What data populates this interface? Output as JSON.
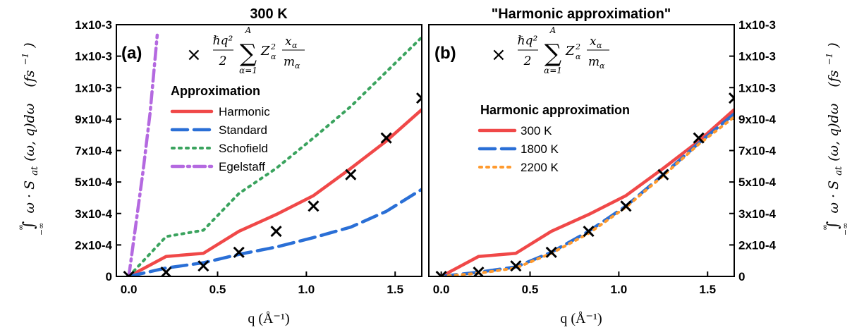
{
  "colors": {
    "harmonic": "#f04848",
    "standard": "#2a6fd6",
    "schofield": "#3aa35e",
    "egelstaff": "#b469e0",
    "k1800": "#2a6fd6",
    "k2200": "#ff9a2e",
    "marker": "#000000"
  },
  "formula": {
    "hbar_q2": "ℏq²",
    "two": "2",
    "sum": "∑",
    "sum_top": "A",
    "sum_bottom": "α=1",
    "z_term": "Z",
    "z_sub": "α",
    "z_sup": "2",
    "x_num": "x",
    "x_sub": "α",
    "m_den": "m",
    "m_sub": "α",
    "marker_symbol": "×"
  },
  "y_axis_label": {
    "int_upper": "∞",
    "int_lower": "−∞",
    "integral": "∫",
    "body": "ω · S",
    "sub": "at",
    "rest": "(ω, q)dω",
    "units": "(fs",
    "units_sup": "−1",
    "units_close": ")"
  },
  "chart_data": [
    {
      "type": "line",
      "panel_label": "(a)",
      "title": "300 K",
      "xlabel": "q (Å⁻¹)",
      "xlim": [
        -0.07,
        1.65
      ],
      "ylim": [
        0,
        0.0012
      ],
      "x_ticks": [
        "0.0",
        "0.5",
        "1.0",
        "1.5"
      ],
      "x_tick_values": [
        0,
        0.5,
        1.0,
        1.5
      ],
      "y_ticks": [
        "0",
        "2x10-4",
        "3x10-4",
        "5x10-4",
        "7x10-4",
        "9x10-4",
        "1x10-3",
        "1x10-3",
        "1x10-3"
      ],
      "y_tick_values": [
        0,
        0.00015,
        0.0003,
        0.00045,
        0.0006,
        0.00075,
        0.0009,
        0.00105,
        0.0012
      ],
      "legend_title": "Approximation",
      "legend_position": "top-center",
      "series": [
        {
          "name": "Harmonic",
          "style": "solid",
          "color_key": "harmonic",
          "x": [
            0,
            0.21,
            0.42,
            0.62,
            0.83,
            1.04,
            1.25,
            1.45,
            1.65
          ],
          "y": [
            0.0,
            9.5e-05,
            0.00011,
            0.000215,
            0.000295,
            0.000385,
            0.000515,
            0.000645,
            0.000795
          ]
        },
        {
          "name": "Standard",
          "style": "dash",
          "color_key": "standard",
          "x": [
            0,
            0.21,
            0.42,
            0.62,
            0.83,
            1.04,
            1.25,
            1.45,
            1.65
          ],
          "y": [
            0.0,
            4e-05,
            6.5e-05,
            0.000105,
            0.00014,
            0.000185,
            0.000235,
            0.00031,
            0.000415
          ]
        },
        {
          "name": "Schofield",
          "style": "dot",
          "color_key": "schofield",
          "x": [
            0,
            0.21,
            0.42,
            0.62,
            0.83,
            1.04,
            1.25,
            1.45,
            1.65
          ],
          "y": [
            0.0,
            0.00019,
            0.00022,
            0.000395,
            0.000515,
            0.00066,
            0.00081,
            0.000975,
            0.00114
          ]
        },
        {
          "name": "Egelstaff",
          "style": "dashdot",
          "color_key": "egelstaff",
          "x": [
            0,
            0.04,
            0.08,
            0.12,
            0.16
          ],
          "y": [
            0.0,
            0.00025,
            0.0005,
            0.00078,
            0.00115
          ]
        },
        {
          "name": "",
          "style": "marker",
          "color_key": "marker",
          "x": [
            0,
            0.21,
            0.42,
            0.62,
            0.83,
            1.04,
            1.25,
            1.45,
            1.65
          ],
          "y": [
            0.0,
            2e-05,
            5e-05,
            0.000115,
            0.000215,
            0.000335,
            0.000485,
            0.00066,
            0.00085
          ]
        }
      ]
    },
    {
      "type": "line",
      "panel_label": "(b)",
      "title": "\"Harmonic approximation\"",
      "xlabel": "q (Å⁻¹)",
      "xlim": [
        -0.07,
        1.65
      ],
      "ylim": [
        0,
        0.0012
      ],
      "x_ticks": [
        "0.0",
        "0.5",
        "1.0",
        "1.5"
      ],
      "x_tick_values": [
        0,
        0.5,
        1.0,
        1.5
      ],
      "y_ticks": [
        "0",
        "2x10-4",
        "3x10-4",
        "5x10-4",
        "7x10-4",
        "9x10-4",
        "1x10-3",
        "1x10-3",
        "1x10-3"
      ],
      "y_tick_values": [
        0,
        0.00015,
        0.0003,
        0.00045,
        0.0006,
        0.00075,
        0.0009,
        0.00105,
        0.0012
      ],
      "legend_title": "Harmonic approximation",
      "legend_position": "top-center",
      "series": [
        {
          "name": "300 K",
          "style": "solid",
          "color_key": "harmonic",
          "x": [
            0,
            0.21,
            0.42,
            0.62,
            0.83,
            1.04,
            1.25,
            1.45,
            1.65
          ],
          "y": [
            0.0,
            9.5e-05,
            0.00011,
            0.000215,
            0.000295,
            0.000385,
            0.000515,
            0.000645,
            0.000795
          ]
        },
        {
          "name": "1800 K",
          "style": "dash",
          "color_key": "k1800",
          "x": [
            0,
            0.21,
            0.42,
            0.62,
            0.83,
            1.04,
            1.25,
            1.45,
            1.65
          ],
          "y": [
            0.0,
            2e-05,
            4.5e-05,
            0.000115,
            0.000215,
            0.000335,
            0.000485,
            0.000635,
            0.000775
          ]
        },
        {
          "name": "2200 K",
          "style": "dot",
          "color_key": "k2200",
          "x": [
            0,
            0.21,
            0.42,
            0.62,
            0.83,
            1.04,
            1.25,
            1.45,
            1.65
          ],
          "y": [
            0.0,
            1.5e-05,
            4e-05,
            0.00011,
            0.000205,
            0.00033,
            0.00048,
            0.00063,
            0.00076
          ]
        },
        {
          "name": "",
          "style": "marker",
          "color_key": "marker",
          "x": [
            0,
            0.21,
            0.42,
            0.62,
            0.83,
            1.04,
            1.25,
            1.45,
            1.65
          ],
          "y": [
            0.0,
            2e-05,
            5e-05,
            0.000115,
            0.000215,
            0.000335,
            0.000485,
            0.00066,
            0.00085
          ]
        }
      ]
    }
  ]
}
